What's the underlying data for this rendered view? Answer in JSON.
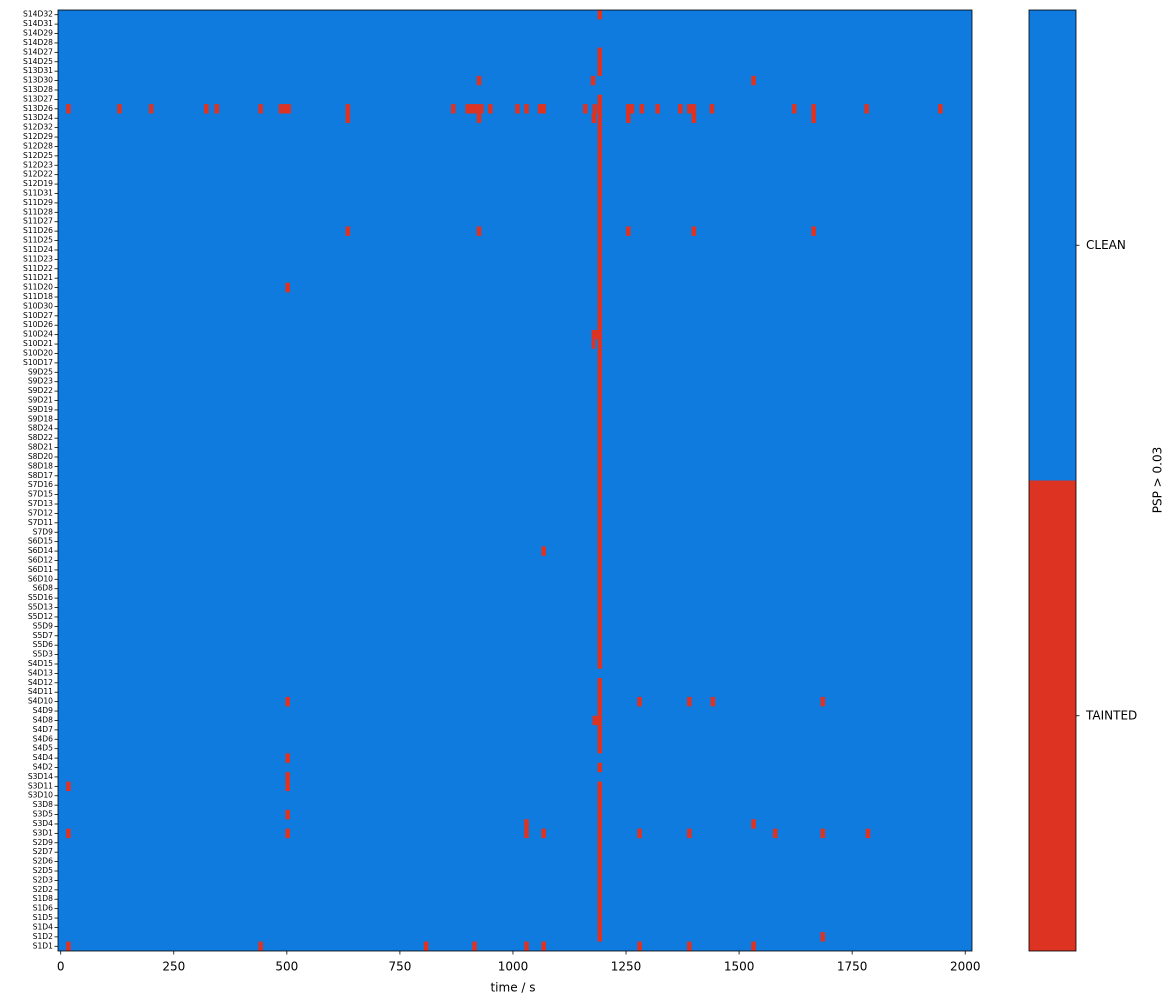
{
  "chart_data": {
    "type": "heatmap",
    "xlabel": "time / s",
    "xlim": [
      -6,
      2015
    ],
    "xticks": [
      0,
      250,
      500,
      750,
      1000,
      1250,
      1500,
      1750,
      2000
    ],
    "background_color": "#0f7bdf",
    "mark_color": "#dd3322",
    "colorbar": {
      "label": "PSP > 0.03",
      "categories": [
        "TAINTED",
        "CLEAN"
      ],
      "colors": [
        "#dd3322",
        "#0f7bdf"
      ]
    },
    "categories": [
      "S1D1",
      "S1D2",
      "S1D4",
      "S1D5",
      "S1D6",
      "S1D8",
      "S2D2",
      "S2D3",
      "S2D5",
      "S2D6",
      "S2D7",
      "S2D9",
      "S3D1",
      "S3D4",
      "S3D5",
      "S3D8",
      "S3D10",
      "S3D11",
      "S3D14",
      "S4D2",
      "S4D4",
      "S4D5",
      "S4D6",
      "S4D7",
      "S4D8",
      "S4D9",
      "S4D10",
      "S4D11",
      "S4D12",
      "S4D13",
      "S4D15",
      "S5D3",
      "S5D6",
      "S5D7",
      "S5D9",
      "S5D12",
      "S5D13",
      "S5D16",
      "S6D8",
      "S6D10",
      "S6D11",
      "S6D12",
      "S6D14",
      "S6D15",
      "S7D9",
      "S7D11",
      "S7D12",
      "S7D13",
      "S7D15",
      "S7D16",
      "S8D17",
      "S8D18",
      "S8D20",
      "S8D21",
      "S8D22",
      "S8D24",
      "S9D18",
      "S9D19",
      "S9D21",
      "S9D22",
      "S9D23",
      "S9D25",
      "S10D17",
      "S10D20",
      "S10D21",
      "S10D24",
      "S10D26",
      "S10D27",
      "S10D30",
      "S11D18",
      "S11D20",
      "S11D21",
      "S11D22",
      "S11D23",
      "S11D24",
      "S11D25",
      "S11D26",
      "S11D27",
      "S11D28",
      "S11D29",
      "S11D31",
      "S12D19",
      "S12D22",
      "S12D23",
      "S12D25",
      "S12D28",
      "S12D29",
      "S12D32",
      "S13D24",
      "S13D26",
      "S13D27",
      "S13D28",
      "S13D30",
      "S13D31",
      "S14D25",
      "S14D27",
      "S14D28",
      "S14D29",
      "S14D31",
      "S14D32"
    ],
    "tainted": [
      [
        [
          12,
          22
        ],
        [
          437,
          447
        ],
        [
          803,
          813
        ],
        [
          910,
          920
        ],
        [
          1025,
          1035
        ],
        [
          1063,
          1073
        ],
        [
          1275,
          1285
        ],
        [
          1385,
          1395
        ],
        [
          1527,
          1537
        ]
      ],
      [
        [
          1187,
          1197
        ],
        [
          1680,
          1690
        ]
      ],
      [
        [
          1187,
          1197
        ]
      ],
      [
        [
          1187,
          1197
        ]
      ],
      [
        [
          1187,
          1197
        ]
      ],
      [
        [
          1187,
          1197
        ]
      ],
      [
        [
          1187,
          1197
        ]
      ],
      [
        [
          1187,
          1197
        ]
      ],
      [
        [
          1187,
          1197
        ]
      ],
      [
        [
          1187,
          1197
        ]
      ],
      [
        [
          1187,
          1197
        ]
      ],
      [
        [
          1187,
          1197
        ]
      ],
      [
        [
          12,
          22
        ],
        [
          497,
          507
        ],
        [
          1025,
          1035
        ],
        [
          1063,
          1073
        ],
        [
          1187,
          1197
        ],
        [
          1275,
          1285
        ],
        [
          1385,
          1395
        ],
        [
          1575,
          1585
        ],
        [
          1680,
          1690
        ],
        [
          1780,
          1790
        ]
      ],
      [
        [
          1025,
          1035
        ],
        [
          1187,
          1197
        ],
        [
          1527,
          1537
        ]
      ],
      [
        [
          497,
          507
        ],
        [
          1187,
          1197
        ]
      ],
      [
        [
          1187,
          1197
        ]
      ],
      [
        [
          1187,
          1197
        ]
      ],
      [
        [
          12,
          22
        ],
        [
          497,
          507
        ],
        [
          1187,
          1197
        ]
      ],
      [
        [
          497,
          507
        ]
      ],
      [
        [
          1187,
          1197
        ]
      ],
      [
        [
          497,
          507
        ]
      ],
      [
        [
          1187,
          1197
        ]
      ],
      [
        [
          1187,
          1197
        ]
      ],
      [
        [
          1187,
          1197
        ]
      ],
      [
        [
          1176,
          1197
        ]
      ],
      [
        [
          1187,
          1197
        ]
      ],
      [
        [
          497,
          507
        ],
        [
          1187,
          1197
        ],
        [
          1275,
          1285
        ],
        [
          1385,
          1395
        ],
        [
          1437,
          1447
        ],
        [
          1680,
          1690
        ]
      ],
      [
        [
          1187,
          1197
        ]
      ],
      [
        [
          1187,
          1197
        ]
      ],
      [],
      [
        [
          1187,
          1197
        ]
      ],
      [
        [
          1187,
          1197
        ]
      ],
      [
        [
          1187,
          1197
        ]
      ],
      [
        [
          1187,
          1197
        ]
      ],
      [
        [
          1187,
          1197
        ]
      ],
      [
        [
          1187,
          1197
        ]
      ],
      [
        [
          1187,
          1197
        ]
      ],
      [
        [
          1187,
          1197
        ]
      ],
      [
        [
          1187,
          1197
        ]
      ],
      [
        [
          1187,
          1197
        ]
      ],
      [
        [
          1187,
          1197
        ]
      ],
      [
        [
          1187,
          1197
        ]
      ],
      [
        [
          1063,
          1073
        ],
        [
          1187,
          1197
        ]
      ],
      [
        [
          1187,
          1197
        ]
      ],
      [
        [
          1187,
          1197
        ]
      ],
      [
        [
          1187,
          1197
        ]
      ],
      [
        [
          1187,
          1197
        ]
      ],
      [
        [
          1187,
          1197
        ]
      ],
      [
        [
          1187,
          1197
        ]
      ],
      [
        [
          1187,
          1197
        ]
      ],
      [
        [
          1187,
          1197
        ]
      ],
      [
        [
          1187,
          1197
        ]
      ],
      [
        [
          1187,
          1197
        ]
      ],
      [
        [
          1187,
          1197
        ]
      ],
      [
        [
          1187,
          1197
        ]
      ],
      [
        [
          1187,
          1197
        ]
      ],
      [
        [
          1187,
          1197
        ]
      ],
      [
        [
          1187,
          1197
        ]
      ],
      [
        [
          1187,
          1197
        ]
      ],
      [
        [
          1187,
          1197
        ]
      ],
      [
        [
          1187,
          1197
        ]
      ],
      [
        [
          1187,
          1197
        ]
      ],
      [
        [
          1187,
          1197
        ]
      ],
      [
        [
          1187,
          1197
        ]
      ],
      [
        [
          1174,
          1182
        ],
        [
          1187,
          1197
        ]
      ],
      [
        [
          1174,
          1197
        ]
      ],
      [
        [
          1187,
          1197
        ]
      ],
      [
        [
          1187,
          1197
        ]
      ],
      [
        [
          1187,
          1197
        ]
      ],
      [
        [
          1187,
          1197
        ]
      ],
      [
        [
          497,
          507
        ],
        [
          1187,
          1197
        ]
      ],
      [
        [
          1187,
          1197
        ]
      ],
      [
        [
          1187,
          1197
        ]
      ],
      [
        [
          1187,
          1197
        ]
      ],
      [
        [
          1187,
          1197
        ]
      ],
      [
        [
          1187,
          1197
        ]
      ],
      [
        [
          630,
          640
        ],
        [
          920,
          930
        ],
        [
          1187,
          1197
        ],
        [
          1250,
          1260
        ],
        [
          1395,
          1405
        ],
        [
          1660,
          1670
        ]
      ],
      [
        [
          1187,
          1197
        ]
      ],
      [
        [
          1187,
          1197
        ]
      ],
      [
        [
          1187,
          1197
        ]
      ],
      [
        [
          1187,
          1197
        ]
      ],
      [
        [
          1187,
          1197
        ]
      ],
      [
        [
          1187,
          1197
        ]
      ],
      [
        [
          1187,
          1197
        ]
      ],
      [
        [
          1187,
          1197
        ]
      ],
      [
        [
          1187,
          1197
        ]
      ],
      [
        [
          1187,
          1197
        ]
      ],
      [
        [
          1187,
          1197
        ]
      ],
      [
        [
          630,
          640
        ],
        [
          920,
          930
        ],
        [
          1174,
          1184
        ],
        [
          1187,
          1197
        ],
        [
          1250,
          1260
        ],
        [
          1395,
          1405
        ],
        [
          1660,
          1670
        ]
      ],
      [
        [
          12,
          22
        ],
        [
          125,
          135
        ],
        [
          195,
          205
        ],
        [
          317,
          327
        ],
        [
          340,
          350
        ],
        [
          437,
          447
        ],
        [
          482,
          492
        ],
        [
          492,
          502
        ],
        [
          499,
          509
        ],
        [
          630,
          640
        ],
        [
          863,
          873
        ],
        [
          895,
          905
        ],
        [
          905,
          915
        ],
        [
          915,
          925
        ],
        [
          925,
          935
        ],
        [
          945,
          955
        ],
        [
          1005,
          1015
        ],
        [
          1025,
          1035
        ],
        [
          1055,
          1065
        ],
        [
          1063,
          1073
        ],
        [
          1155,
          1165
        ],
        [
          1176,
          1186
        ],
        [
          1187,
          1197
        ],
        [
          1250,
          1260
        ],
        [
          1258,
          1268
        ],
        [
          1280,
          1290
        ],
        [
          1315,
          1325
        ],
        [
          1365,
          1375
        ],
        [
          1385,
          1395
        ],
        [
          1395,
          1405
        ],
        [
          1435,
          1445
        ],
        [
          1617,
          1627
        ],
        [
          1660,
          1670
        ],
        [
          1777,
          1787
        ],
        [
          1940,
          1950
        ]
      ],
      [
        [
          1187,
          1197
        ]
      ],
      [],
      [
        [
          920,
          930
        ],
        [
          1172,
          1182
        ],
        [
          1527,
          1537
        ]
      ],
      [
        [
          1187,
          1197
        ]
      ],
      [
        [
          1187,
          1197
        ]
      ],
      [
        [
          1187,
          1197
        ]
      ],
      [],
      [],
      [],
      [
        [
          1187,
          1197
        ]
      ]
    ]
  }
}
